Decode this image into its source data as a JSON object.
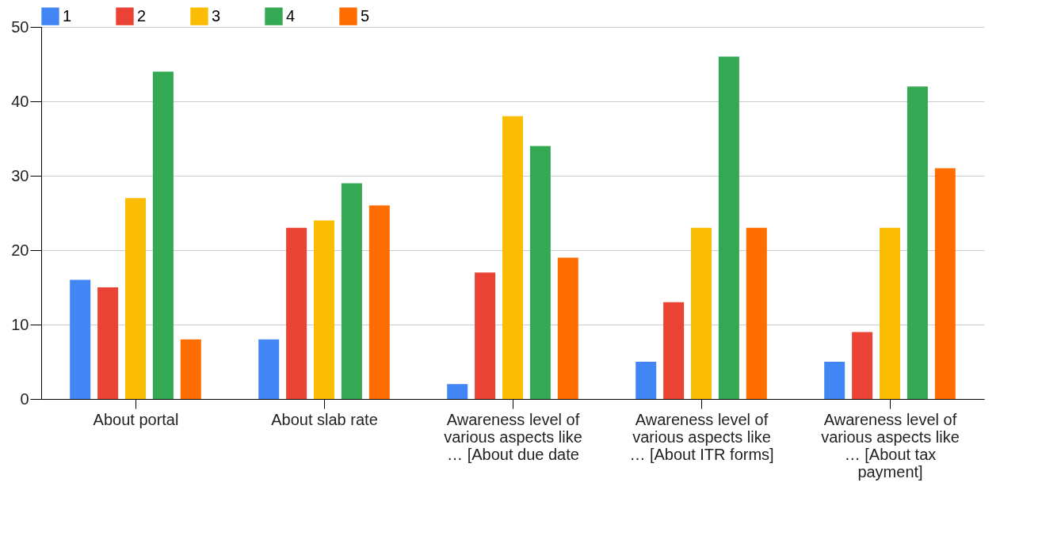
{
  "chart_data": {
    "type": "bar",
    "categories": [
      "About portal",
      "About slab rate",
      "Awareness level of various aspects like … [About due date",
      "Awareness level of various aspects like … [About ITR forms]",
      "Awareness level of various aspects like … [About tax payment]"
    ],
    "series": [
      {
        "name": "1",
        "color": "#4285f4",
        "values": [
          16,
          8,
          2,
          5,
          5
        ]
      },
      {
        "name": "2",
        "color": "#ea4335",
        "values": [
          15,
          23,
          17,
          13,
          9
        ]
      },
      {
        "name": "3",
        "color": "#fbbc04",
        "values": [
          27,
          24,
          38,
          23,
          23
        ]
      },
      {
        "name": "4",
        "color": "#34a853",
        "values": [
          44,
          29,
          34,
          46,
          42
        ]
      },
      {
        "name": "5",
        "color": "#ff6d01",
        "values": [
          8,
          26,
          19,
          23,
          31
        ]
      }
    ],
    "ylim": [
      0,
      50
    ],
    "yticks": [
      0,
      10,
      20,
      30,
      40,
      50
    ],
    "grid": true,
    "legend": "top"
  }
}
